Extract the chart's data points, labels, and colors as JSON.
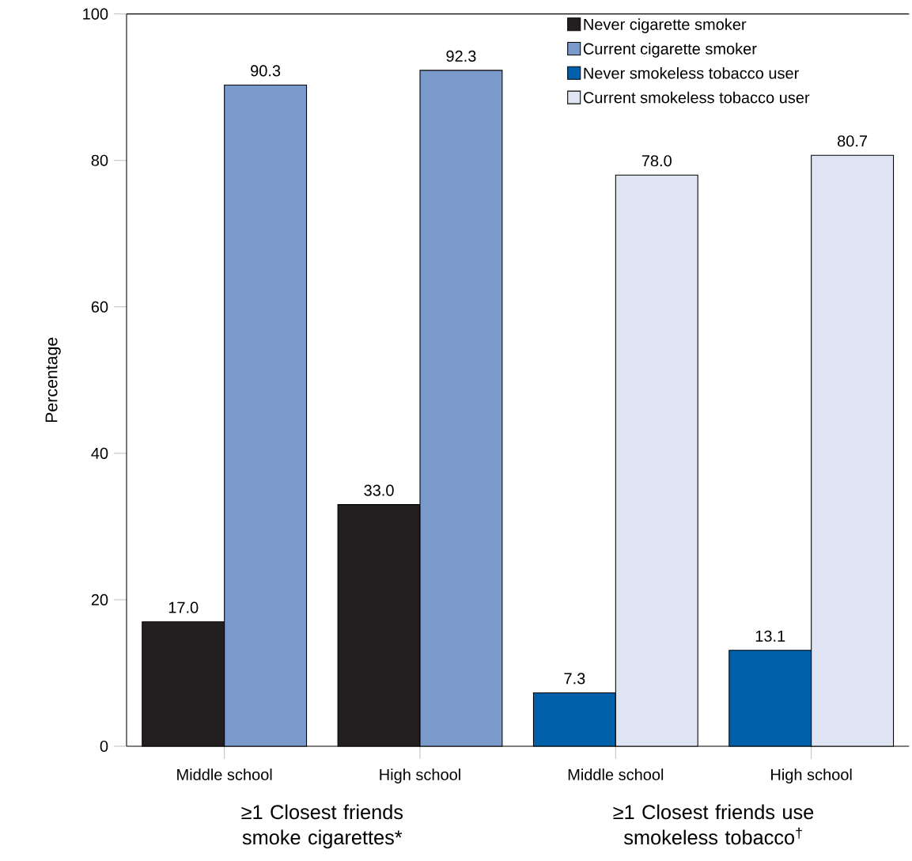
{
  "chart_data": {
    "type": "bar",
    "ylabel": "Percentage",
    "categories": [
      "Middle school",
      "High school",
      "Middle school",
      "High school"
    ],
    "series": [
      {
        "name": "Never cigarette smoker",
        "color": "#231f20",
        "values": [
          17.0,
          33.0,
          null,
          null
        ],
        "value_labels": [
          "17.0",
          "33.0",
          null,
          null
        ]
      },
      {
        "name": "Current cigarette smoker",
        "color": "#7b9acc",
        "values": [
          90.3,
          92.3,
          null,
          null
        ],
        "value_labels": [
          "90.3",
          "92.3",
          null,
          null
        ]
      },
      {
        "name": "Never smokeless tobacco user",
        "color": "#0060a9",
        "values": [
          null,
          null,
          7.3,
          13.1
        ],
        "value_labels": [
          null,
          null,
          "7.3",
          "13.1"
        ]
      },
      {
        "name": "Current smokeless tobacco user",
        "color": "#dfe4f2",
        "values": [
          null,
          null,
          78.0,
          80.7
        ],
        "value_labels": [
          null,
          null,
          "78.0",
          "80.7"
        ]
      }
    ],
    "ylim": [
      0,
      100
    ],
    "yticks": [
      0,
      20,
      40,
      60,
      80,
      100
    ],
    "legend": "top right",
    "grid": false,
    "annotations": [
      "≥1 Closest friends smoke cigarettes*",
      "≥1 Closest friends use smokeless tobacco$^{†}$"
    ]
  }
}
